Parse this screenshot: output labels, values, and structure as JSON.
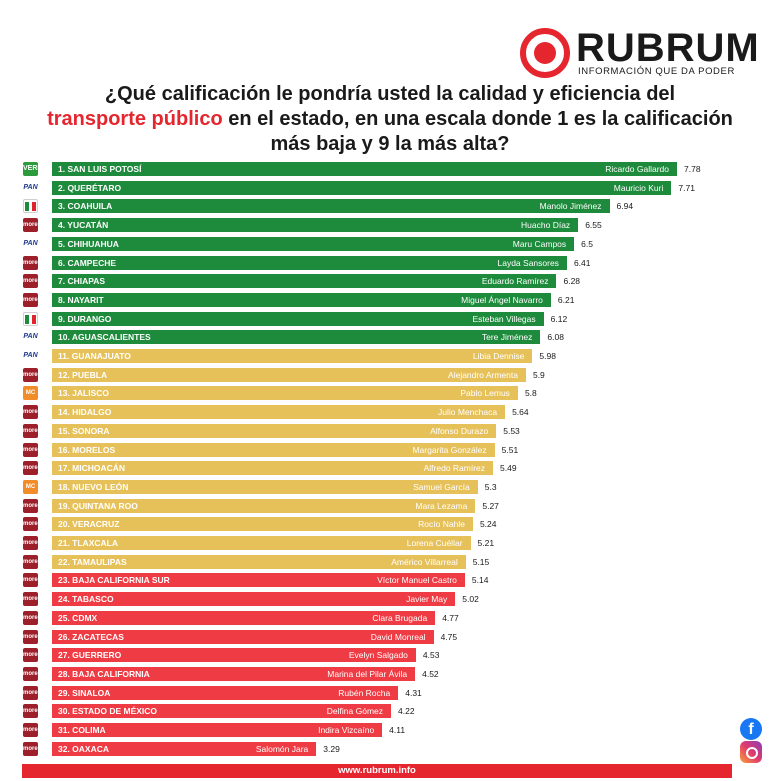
{
  "brand": {
    "name": "RUBRUM",
    "tagline": "INFORMACIÓN QUE DA PODER",
    "url": "www.rubrum.info"
  },
  "question": {
    "part1": "¿Qué calificación le pondría usted la calidad y eficiencia del",
    "highlight": "transporte público",
    "part2": "en el estado, en una escala donde 1 es la calificación más baja y 9 la más alta?"
  },
  "colors": {
    "green": "#1e8a3c",
    "yellow": "#e6c15a",
    "red": "#ef3b43",
    "accent": "#e5262f"
  },
  "chart_data": {
    "type": "bar",
    "orientation": "horizontal",
    "title": "¿Qué calificación le pondría usted la calidad y eficiencia del transporte público en el estado, en una escala donde 1 es la calificación más baja y 9 la más alta?",
    "xlim": [
      0,
      7.78
    ],
    "categories": [
      "1. SAN LUIS POTOSÍ",
      "2. QUERÉTARO",
      "3. COAHUILA",
      "4. YUCATÁN",
      "5. CHIHUAHUA",
      "6. CAMPECHE",
      "7. CHIAPAS",
      "8. NAYARIT",
      "9. DURANGO",
      "10. AGUASCALIENTES",
      "11. GUANAJUATO",
      "12. PUEBLA",
      "13. JALISCO",
      "14. HIDALGO",
      "15. SONORA",
      "16. MORELOS",
      "17. MICHOACÁN",
      "18. NUEVO LEÓN",
      "19. QUINTANA ROO",
      "20. VERACRUZ",
      "21. TLAXCALA",
      "22. TAMAULIPAS",
      "23. BAJA CALIFORNIA SUR",
      "24. TABASCO",
      "25. CDMX",
      "26. ZACATECAS",
      "27. GUERRERO",
      "28. BAJA CALIFORNIA",
      "29. SINALOA",
      "30. ESTADO DE MÉXICO",
      "31. COLIMA",
      "32. OAXACA"
    ],
    "governors": [
      "Ricardo Gallardo",
      "Mauricio Kuri",
      "Manolo Jiménez",
      "Huacho Díaz",
      "Maru Campos",
      "Layda Sansores",
      "Eduardo Ramírez",
      "Miguel Ángel Navarro",
      "Esteban Villegas",
      "Tere Jiménez",
      "Libia Dennise",
      "Alejandro Armenta",
      "Pablo Lemus",
      "Julio Menchaca",
      "Alfonso Durazo",
      "Margarita González",
      "Alfredo Ramírez",
      "Samuel García",
      "Mara Lezama",
      "Rocío Nahle",
      "Lorena Cuéllar",
      "Américo Villarreal",
      "Víctor Manuel Castro",
      "Javier May",
      "Clara Brugada",
      "David Monreal",
      "Evelyn Salgado",
      "Marina del Pilar Ávila",
      "Rubén Rocha",
      "Delfina Gómez",
      "Indira Vizcaíno",
      "Salomón Jara"
    ],
    "values": [
      7.78,
      7.71,
      6.94,
      6.55,
      6.5,
      6.41,
      6.28,
      6.21,
      6.12,
      6.08,
      5.98,
      5.9,
      5.8,
      5.64,
      5.53,
      5.51,
      5.49,
      5.3,
      5.27,
      5.24,
      5.21,
      5.15,
      5.14,
      5.02,
      4.77,
      4.75,
      4.53,
      4.52,
      4.31,
      4.22,
      4.11,
      3.29
    ],
    "tiers": [
      "green",
      "green",
      "green",
      "green",
      "green",
      "green",
      "green",
      "green",
      "green",
      "green",
      "yellow",
      "yellow",
      "yellow",
      "yellow",
      "yellow",
      "yellow",
      "yellow",
      "yellow",
      "yellow",
      "yellow",
      "yellow",
      "yellow",
      "red",
      "red",
      "red",
      "red",
      "red",
      "red",
      "red",
      "red",
      "red",
      "red"
    ],
    "parties": [
      "pvem",
      "pan",
      "pri",
      "morena",
      "pan",
      "morena",
      "morena",
      "morena",
      "pri",
      "pan",
      "pan",
      "morena",
      "mc",
      "morena",
      "morena",
      "morena",
      "morena",
      "mc",
      "morena",
      "morena",
      "morena",
      "morena",
      "morena",
      "morena",
      "morena",
      "morena",
      "morena",
      "morena",
      "morena",
      "morena",
      "morena",
      "morena"
    ]
  },
  "party_labels": {
    "pan": "PAN",
    "morena": "morena",
    "mc": "MC",
    "pvem": "VERDE",
    "pri": ""
  }
}
